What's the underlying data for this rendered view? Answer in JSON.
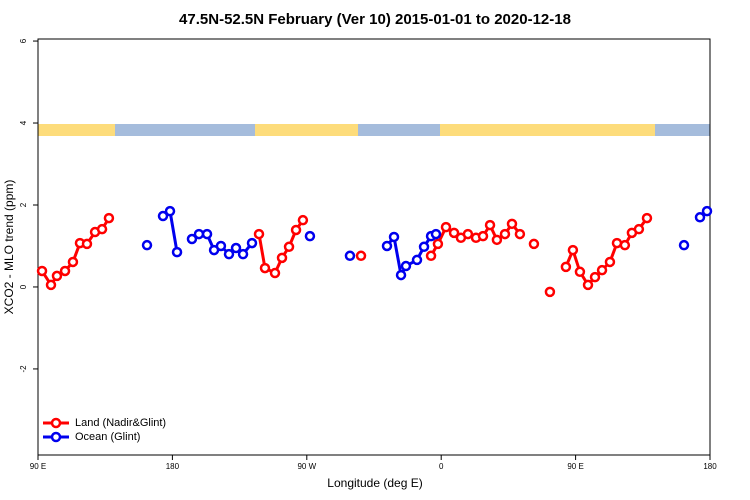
{
  "chart_data": {
    "type": "line",
    "title": "47.5N-52.5N February (Ver 10)   2015-01-01 to 2020-12-18",
    "x_label": "Longitude (deg E)",
    "y_label": "XCO2 - MLO trend (ppm)",
    "xlim": [
      90,
      540
    ],
    "xticks": [
      {
        "value": 90,
        "label": "90 E"
      },
      {
        "value": 180,
        "label": "180"
      },
      {
        "value": 270,
        "label": "90 W"
      },
      {
        "value": 360,
        "label": "0"
      },
      {
        "value": 450,
        "label": "90 E"
      },
      {
        "value": 540,
        "label": "180"
      }
    ],
    "ylim": [
      -4.1,
      6.05
    ],
    "yticks": [
      -2,
      0,
      2,
      4,
      6
    ],
    "legend": "bottom-left",
    "series": [
      {
        "name": "Land (Nadir&Glint)",
        "color": "#ff0000",
        "x": [
          92.7,
          98.7,
          102.7,
          108.1,
          113.4,
          118.1,
          122.8,
          128.2,
          132.9,
          137.5,
          null,
          238,
          242,
          248.7,
          253.4,
          258.1,
          262.8,
          267.4,
          null,
          306.3,
          null,
          353.2,
          357.8,
          363.2,
          368.6,
          373.2,
          377.9,
          383.3,
          388,
          392.7,
          397.3,
          402.7,
          407.4,
          412.7,
          null,
          422.1,
          null,
          432.8,
          null,
          443.5,
          448.2,
          452.9,
          458.3,
          463,
          467.7,
          473,
          477.7,
          483,
          487.7,
          492.4,
          497.8
        ],
        "values": [
          0.39,
          0.05,
          0.27,
          0.39,
          0.61,
          1.07,
          1.05,
          1.34,
          1.41,
          1.68,
          null,
          1.29,
          0.46,
          0.34,
          0.71,
          0.98,
          1.39,
          1.63,
          null,
          0.76,
          null,
          0.76,
          1.05,
          1.46,
          1.32,
          1.2,
          1.29,
          1.2,
          1.24,
          1.51,
          1.15,
          1.29,
          1.54,
          1.29,
          null,
          1.05,
          null,
          -0.12,
          null,
          0.49,
          0.9,
          0.37,
          0.05,
          0.24,
          0.41,
          0.61,
          1.07,
          1.02,
          1.32,
          1.41,
          1.68
        ]
      },
      {
        "name": "Ocean (Glint)",
        "color": "#0000ee",
        "x": [
          163,
          null,
          173.7,
          178.4,
          183.1,
          null,
          193.1,
          197.8,
          203.2,
          207.9,
          212.5,
          217.9,
          222.6,
          227.3,
          233.3,
          null,
          272.1,
          null,
          298.9,
          null,
          323.7,
          328.4,
          333.1,
          336.4,
          343.8,
          348.5,
          353.2,
          356.5,
          null,
          522.6,
          null,
          533.3,
          538
        ],
        "values": [
          1.02,
          null,
          1.73,
          1.85,
          0.85,
          null,
          1.17,
          1.29,
          1.29,
          0.9,
          1.0,
          0.8,
          0.95,
          0.8,
          1.07,
          null,
          1.24,
          null,
          0.76,
          null,
          1.0,
          1.22,
          0.29,
          0.51,
          0.66,
          0.98,
          1.24,
          1.29,
          null,
          1.02,
          null,
          1.7,
          1.85
        ]
      }
    ]
  }
}
